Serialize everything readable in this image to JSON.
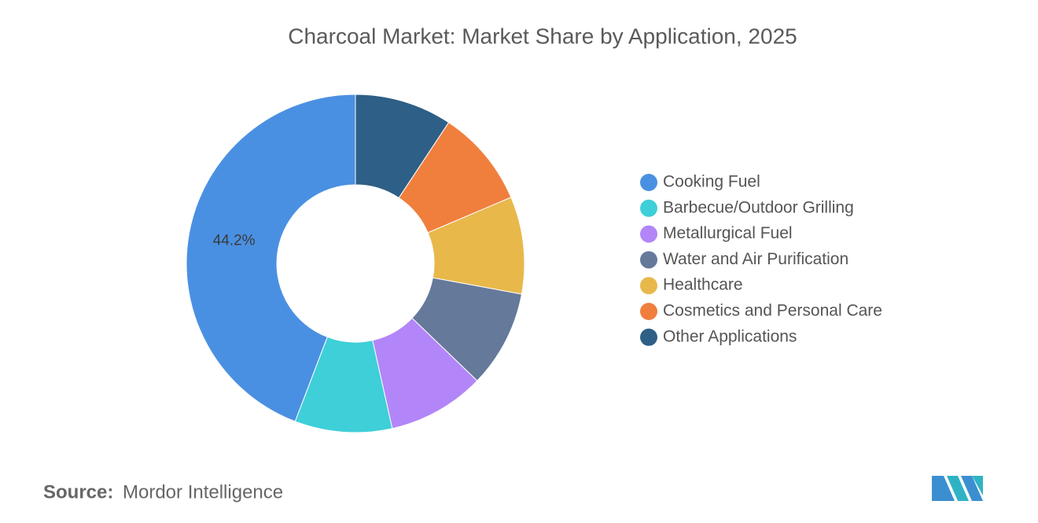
{
  "chart_data": {
    "type": "donut",
    "title": "Charcoal Market: Market Share by Application, 2025",
    "categories": [
      "Cooking Fuel",
      "Barbecue/Outdoor Grilling",
      "Metallurgical Fuel",
      "Water and Air Purification",
      "Healthcare",
      "Cosmetics and Personal Care",
      "Other Applications"
    ],
    "values": [
      44.2,
      9.3,
      9.3,
      9.3,
      9.3,
      9.3,
      9.3
    ],
    "value_labels": [
      "44.2%",
      null,
      null,
      null,
      null,
      null,
      null
    ],
    "colors": [
      "#4a90e2",
      "#3ecfd8",
      "#b286f8",
      "#65799b",
      "#e8b84b",
      "#f07f3e",
      "#2e5f86"
    ]
  },
  "source": {
    "label": "Source:",
    "name": "Mordor Intelligence"
  }
}
